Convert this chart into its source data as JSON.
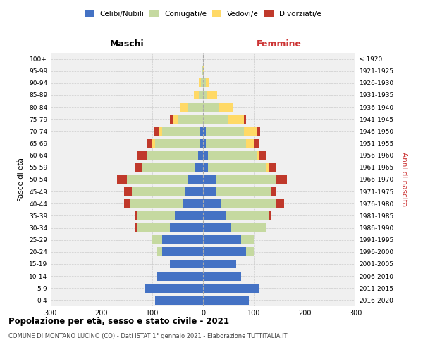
{
  "age_groups": [
    "0-4",
    "5-9",
    "10-14",
    "15-19",
    "20-24",
    "25-29",
    "30-34",
    "35-39",
    "40-44",
    "45-49",
    "50-54",
    "55-59",
    "60-64",
    "65-69",
    "70-74",
    "75-79",
    "80-84",
    "85-89",
    "90-94",
    "95-99",
    "100+"
  ],
  "birth_years": [
    "2016-2020",
    "2011-2015",
    "2006-2010",
    "2001-2005",
    "1996-2000",
    "1991-1995",
    "1986-1990",
    "1981-1985",
    "1976-1980",
    "1971-1975",
    "1966-1970",
    "1961-1965",
    "1956-1960",
    "1951-1955",
    "1946-1950",
    "1941-1945",
    "1936-1940",
    "1931-1935",
    "1926-1930",
    "1921-1925",
    "≤ 1920"
  ],
  "males": {
    "celibi": [
      95,
      115,
      90,
      65,
      80,
      80,
      65,
      55,
      40,
      35,
      30,
      15,
      10,
      5,
      5,
      0,
      0,
      0,
      0,
      0,
      0
    ],
    "coniugati": [
      0,
      0,
      0,
      0,
      10,
      20,
      65,
      75,
      105,
      105,
      120,
      105,
      100,
      90,
      75,
      50,
      30,
      8,
      4,
      2,
      0
    ],
    "vedovi": [
      0,
      0,
      0,
      0,
      0,
      0,
      0,
      0,
      0,
      0,
      0,
      0,
      0,
      5,
      8,
      10,
      15,
      10,
      5,
      0,
      0
    ],
    "divorziati": [
      0,
      0,
      0,
      0,
      0,
      0,
      5,
      5,
      10,
      15,
      20,
      15,
      20,
      10,
      8,
      5,
      0,
      0,
      0,
      0,
      0
    ]
  },
  "females": {
    "nubili": [
      90,
      110,
      75,
      65,
      85,
      75,
      55,
      45,
      35,
      25,
      25,
      10,
      10,
      5,
      5,
      0,
      0,
      0,
      0,
      0,
      0
    ],
    "coniugate": [
      0,
      0,
      0,
      0,
      15,
      25,
      70,
      85,
      110,
      110,
      120,
      115,
      95,
      80,
      75,
      50,
      30,
      8,
      5,
      0,
      0
    ],
    "vedove": [
      0,
      0,
      0,
      0,
      0,
      0,
      0,
      0,
      0,
      0,
      0,
      5,
      5,
      15,
      25,
      30,
      30,
      20,
      8,
      2,
      0
    ],
    "divorziate": [
      0,
      0,
      0,
      0,
      0,
      0,
      0,
      5,
      15,
      10,
      20,
      15,
      15,
      10,
      8,
      5,
      0,
      0,
      0,
      0,
      0
    ]
  },
  "colors": {
    "celibi_nubili": "#4472c4",
    "coniugati": "#c5d9a0",
    "vedovi": "#ffd966",
    "divorziati": "#c0392b"
  },
  "xlim": 300,
  "title": "Popolazione per età, sesso e stato civile - 2021",
  "subtitle": "COMUNE DI MONTANO LUCINO (CO) - Dati ISTAT 1° gennaio 2021 - Elaborazione TUTTITALIA.IT",
  "xlabel_left": "Maschi",
  "xlabel_right": "Femmine",
  "ylabel_left": "Fasce di età",
  "ylabel_right": "Anni di nascita",
  "bg_color": "#f0f0f0",
  "grid_color": "#cccccc"
}
